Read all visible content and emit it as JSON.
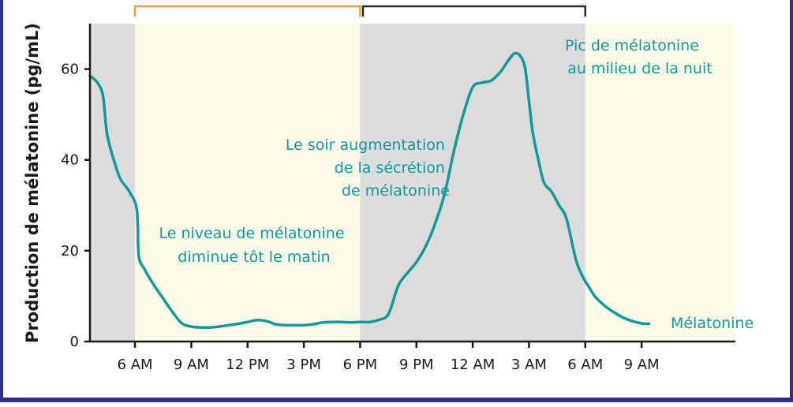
{
  "chart_data": {
    "type": "line",
    "ylabel": "Production de mélatonine (pg/mL)",
    "xlabel": "",
    "ylim": [
      0,
      70
    ],
    "yticks": [
      0,
      20,
      40,
      60
    ],
    "xticks": [
      {
        "hour": 6,
        "label": "6 AM"
      },
      {
        "hour": 9,
        "label": "9 AM"
      },
      {
        "hour": 12,
        "label": "12 PM"
      },
      {
        "hour": 15,
        "label": "3 PM"
      },
      {
        "hour": 18,
        "label": "6 PM"
      },
      {
        "hour": 21,
        "label": "9 PM"
      },
      {
        "hour": 24,
        "label": "12 AM"
      },
      {
        "hour": 27,
        "label": "3 AM"
      },
      {
        "hour": 30,
        "label": "6 AM"
      },
      {
        "hour": 33,
        "label": "9 AM"
      }
    ],
    "xlim": [
      3.6,
      38.0
    ],
    "bands": [
      {
        "start": 3.6,
        "end": 6,
        "kind": "night",
        "color": "#dcdcdc"
      },
      {
        "start": 6,
        "end": 18,
        "kind": "day",
        "color": "#fbfae9"
      },
      {
        "start": 18,
        "end": 30,
        "kind": "night",
        "color": "#dcdcdc"
      },
      {
        "start": 30,
        "end": 38,
        "kind": "day",
        "color": "#fbfae9"
      }
    ],
    "brackets": [
      {
        "start": 6,
        "end": 18,
        "color": "#e3a23a"
      },
      {
        "start": 18.15,
        "end": 30,
        "color": "#2a2a2a"
      }
    ],
    "series": [
      {
        "name": "Mélatonine",
        "color": "#13999b",
        "x": [
          3.6,
          4.0,
          4.3,
          4.5,
          4.8,
          5.2,
          5.7,
          6.1,
          6.2,
          6.5,
          7.0,
          7.5,
          8.0,
          8.5,
          9.0,
          9.5,
          10.0,
          10.5,
          11.0,
          11.5,
          12.0,
          12.5,
          13.0,
          13.5,
          14.0,
          14.5,
          15.0,
          15.5,
          16.0,
          16.5,
          17.0,
          17.5,
          18.0,
          18.5,
          19.0,
          19.5,
          20.0,
          20.3,
          20.6,
          21.0,
          21.5,
          22.0,
          22.5,
          23.0,
          23.5,
          24.0,
          24.5,
          25.0,
          25.5,
          26.0,
          26.3,
          26.6,
          26.8,
          27.0,
          27.2,
          27.5,
          27.8,
          28.2,
          28.6,
          29.0,
          29.5,
          29.9,
          30.2,
          30.5,
          31.0,
          31.5,
          32.0,
          32.5,
          33.0,
          33.4
        ],
        "y": [
          58.5,
          57,
          54,
          46,
          41,
          36,
          33,
          29,
          19,
          16,
          12.5,
          9.5,
          6.5,
          4,
          3.3,
          3.1,
          3.1,
          3.3,
          3.6,
          3.9,
          4.3,
          4.7,
          4.5,
          3.8,
          3.6,
          3.6,
          3.6,
          3.8,
          4.2,
          4.3,
          4.3,
          4.2,
          4.3,
          4.3,
          4.8,
          6,
          12,
          14,
          15.5,
          17.5,
          21,
          26,
          32.5,
          42,
          50,
          56,
          57,
          57.5,
          59.5,
          62.5,
          63.5,
          62.5,
          60,
          53,
          46,
          40,
          35,
          33,
          30,
          27,
          18,
          14,
          12,
          10,
          8,
          6.5,
          5.3,
          4.5,
          4.0,
          3.9
        ]
      }
    ],
    "annotations": [
      {
        "lines": [
          "Pic de mélatonine",
          "au milieu de la nuit"
        ]
      },
      {
        "lines": [
          "Le soir augmentation",
          "de la sécrétion",
          "de mélatonine"
        ]
      },
      {
        "lines": [
          "Le niveau de mélatonine",
          "diminue tôt le matin"
        ]
      },
      {
        "lines": [
          "Mélatonine"
        ]
      }
    ]
  }
}
